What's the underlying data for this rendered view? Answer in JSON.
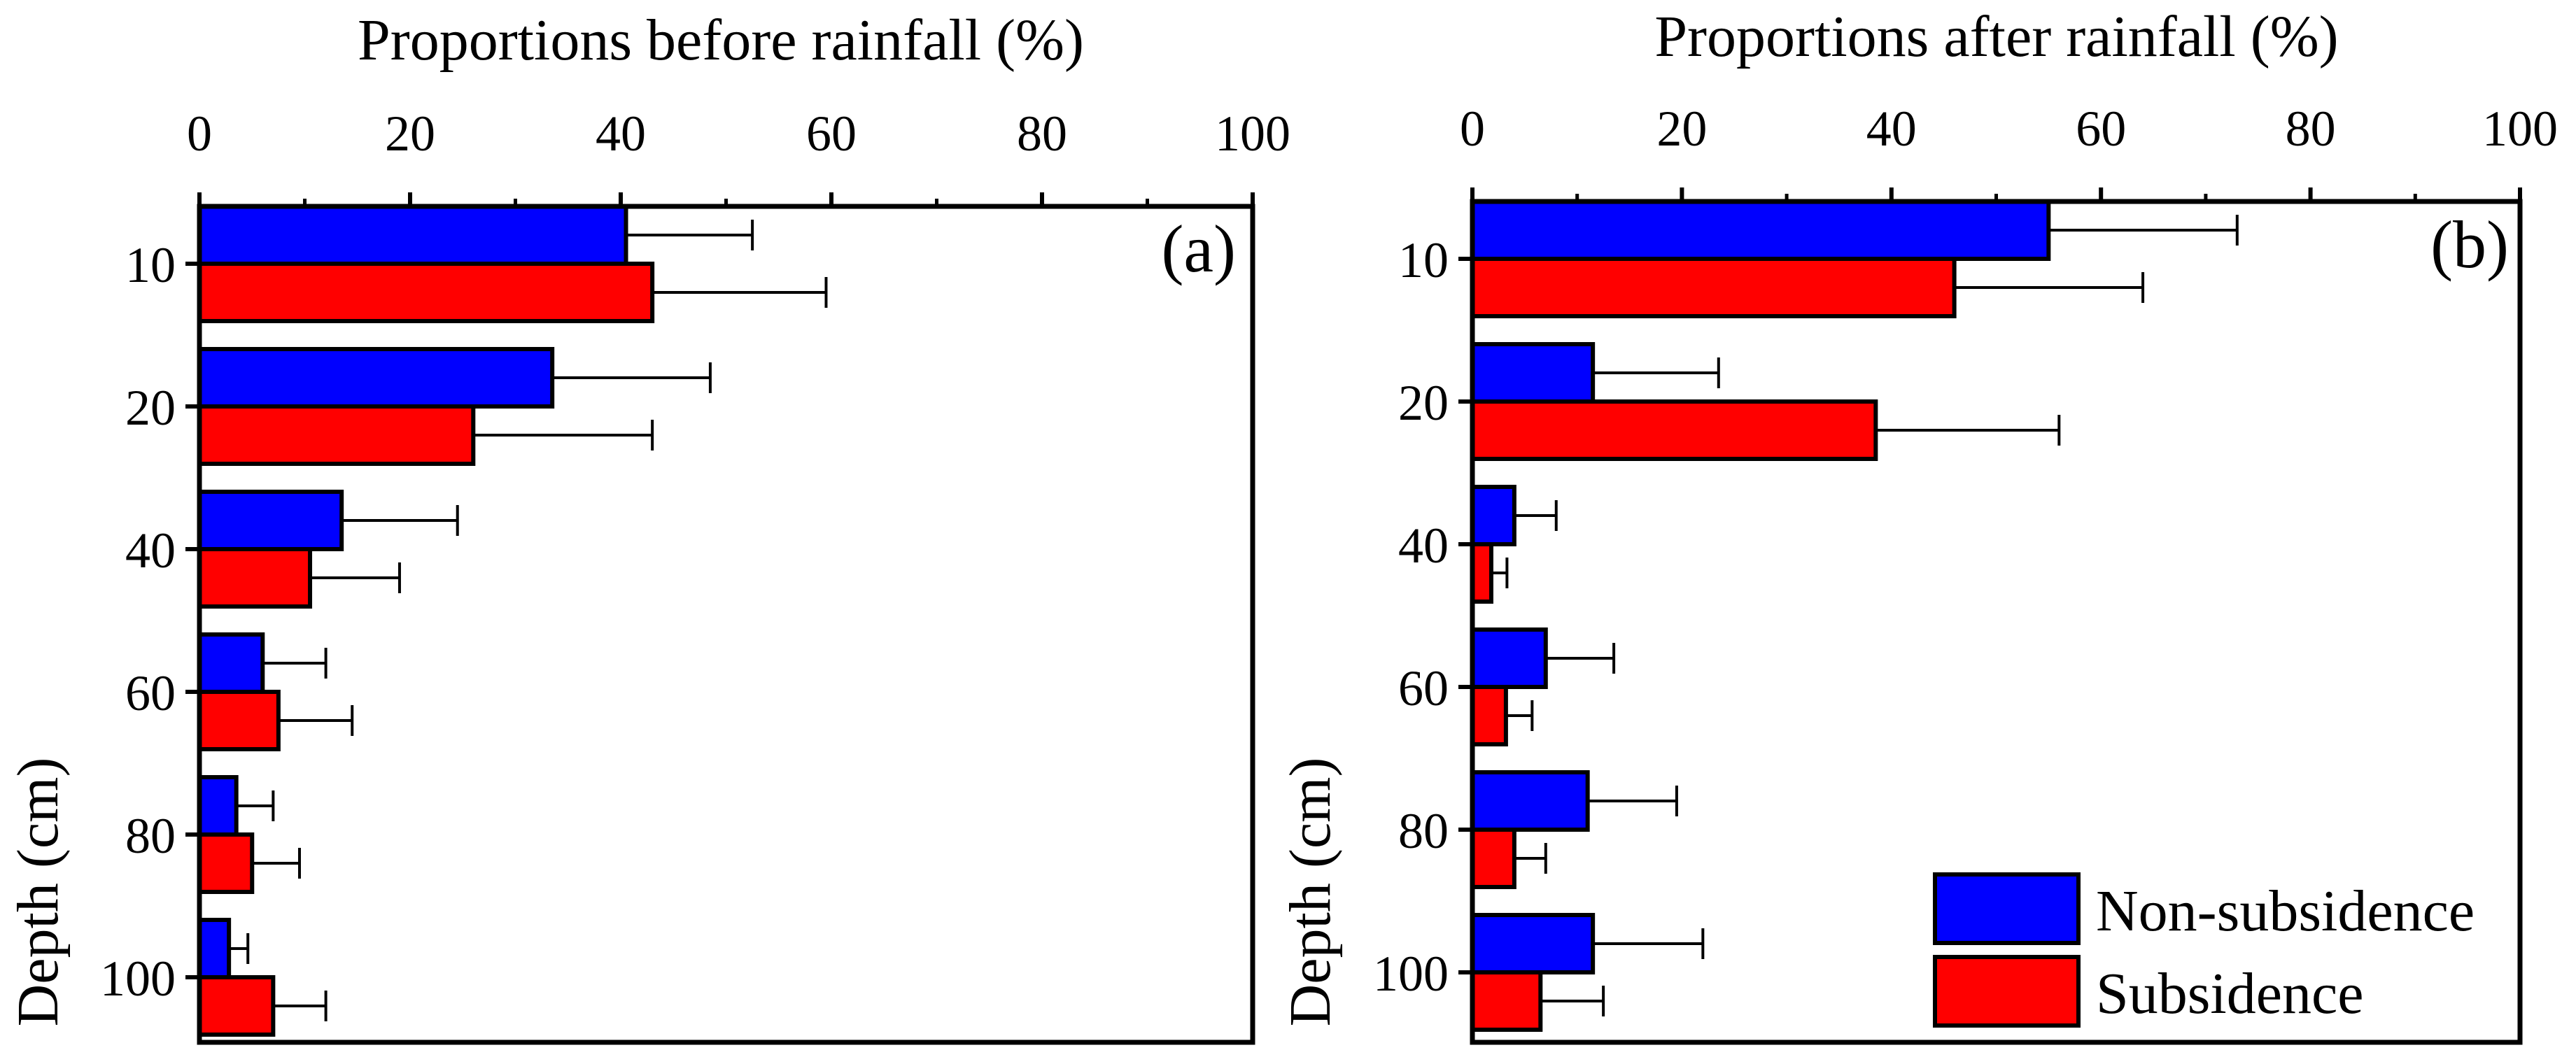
{
  "chart_data": [
    {
      "type": "bar",
      "orientation": "horizontal",
      "panel_label": "(a)",
      "title": "Proportions before rainfall (%)",
      "xlabel": "Proportions before rainfall (%)",
      "ylabel": "Depth (cm)",
      "xlim": [
        0,
        100
      ],
      "xticks": [
        "0",
        "20",
        "40",
        "60",
        "80",
        "100"
      ],
      "categories": [
        "10",
        "20",
        "40",
        "60",
        "80",
        "100"
      ],
      "series": [
        {
          "name": "Non-subsidence",
          "color": "#0000ff",
          "values": [
            40.5,
            33.5,
            13.5,
            6.0,
            3.5,
            2.8
          ],
          "errors": [
            12.0,
            15.0,
            11.0,
            6.0,
            3.5,
            1.8
          ]
        },
        {
          "name": "Subsidence",
          "color": "#ff0000",
          "values": [
            43.0,
            26.0,
            10.5,
            7.5,
            5.0,
            7.0
          ],
          "errors": [
            16.5,
            17.0,
            8.5,
            7.0,
            4.5,
            5.0
          ]
        }
      ]
    },
    {
      "type": "bar",
      "orientation": "horizontal",
      "panel_label": "(b)",
      "title": "Proportions after rainfall (%)",
      "xlabel": "Proportions after rainfall (%)",
      "ylabel": "Depth (cm)",
      "xlim": [
        0,
        100
      ],
      "xticks": [
        "0",
        "20",
        "40",
        "60",
        "80",
        "100"
      ],
      "categories": [
        "10",
        "20",
        "40",
        "60",
        "80",
        "100"
      ],
      "series": [
        {
          "name": "Non-subsidence",
          "color": "#0000ff",
          "values": [
            55.0,
            11.5,
            4.0,
            7.0,
            11.0,
            11.5
          ],
          "errors": [
            18.0,
            12.0,
            4.0,
            6.5,
            8.5,
            10.5
          ]
        },
        {
          "name": "Subsidence",
          "color": "#ff0000",
          "values": [
            46.0,
            38.5,
            1.8,
            3.2,
            4.0,
            6.5
          ],
          "errors": [
            18.0,
            17.5,
            1.5,
            2.5,
            3.0,
            6.0
          ]
        }
      ],
      "legend": {
        "position": "bottom-right",
        "entries": [
          "Non-subsidence",
          "Subsidence"
        ]
      }
    }
  ]
}
